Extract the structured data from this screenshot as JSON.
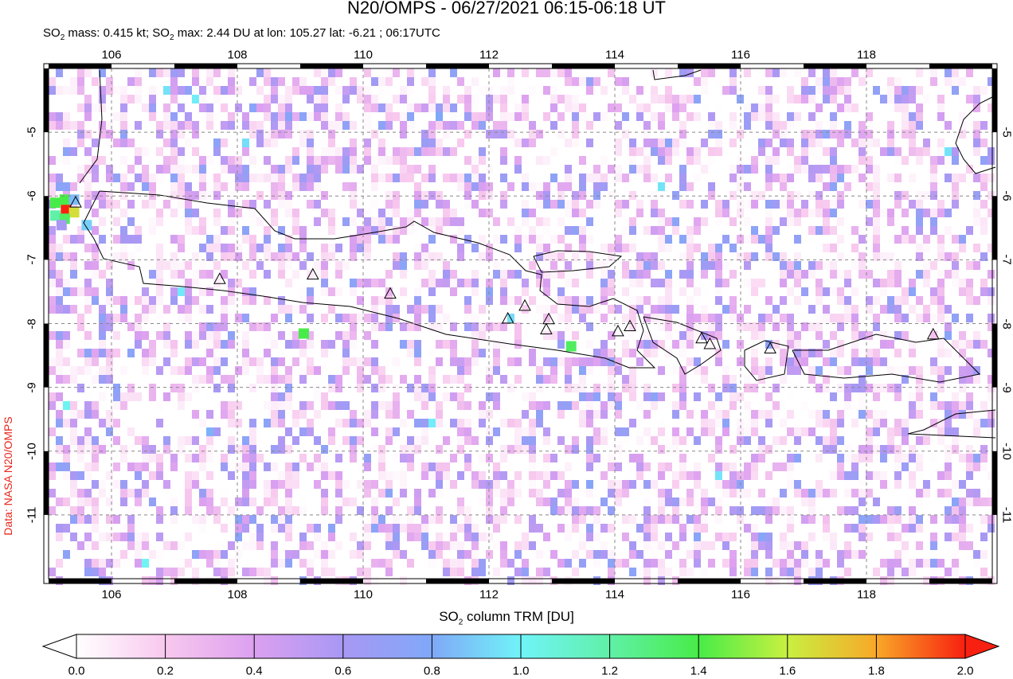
{
  "title": "N20/OMPS - 06/27/2021 06:15-06:18 UT",
  "subtitle": {
    "p1": "SO",
    "s1": "2",
    "p2": " mass: 0.415 kt; SO",
    "s2": "2",
    "p3": " max: 2.44 DU at lon: 105.27 lat: -6.21 ; 06:17UTC"
  },
  "credit": "Data: NASA N20/OMPS",
  "map": {
    "lon_range": [
      105,
      120
    ],
    "lat_range": [
      -12,
      -4
    ],
    "lon_ticks": [
      "106",
      "108",
      "110",
      "112",
      "114",
      "116",
      "118"
    ],
    "lat_ticks": [
      "-5",
      "-6",
      "-7",
      "-8",
      "-9",
      "-10",
      "-11"
    ],
    "grid": true,
    "volcanoes": [
      [
        105.43,
        -6.11
      ],
      [
        107.72,
        -7.31
      ],
      [
        109.2,
        -7.24
      ],
      [
        110.43,
        -7.54
      ],
      [
        112.3,
        -7.93
      ],
      [
        112.57,
        -7.73
      ],
      [
        112.95,
        -7.94
      ],
      [
        112.91,
        -8.1
      ],
      [
        114.05,
        -8.13
      ],
      [
        114.24,
        -8.05
      ],
      [
        115.38,
        -8.24
      ],
      [
        115.51,
        -8.33
      ],
      [
        116.47,
        -8.4
      ],
      [
        119.06,
        -8.18
      ]
    ],
    "high_pixels": [
      [
        105.27,
        -6.21,
        2.0
      ],
      [
        105.4,
        -6.25,
        1.65
      ],
      [
        105.1,
        -6.1,
        1.4
      ],
      [
        105.25,
        -6.05,
        1.4
      ],
      [
        105.1,
        -6.3,
        1.2
      ],
      [
        105.25,
        -6.35,
        1.35
      ],
      [
        105.4,
        -6.05,
        0.85
      ],
      [
        105.6,
        -6.45,
        0.9
      ],
      [
        109.05,
        -8.15,
        1.4
      ],
      [
        113.3,
        -8.35,
        1.35
      ],
      [
        105.2,
        -6.45,
        0.6
      ]
    ]
  },
  "colorbar": {
    "label_pre": "SO",
    "label_sub": "2",
    "label_post": " column TRM [DU]",
    "ticks": [
      "0.0",
      "0.2",
      "0.4",
      "0.6",
      "0.8",
      "1.0",
      "1.2",
      "1.4",
      "1.6",
      "1.8",
      "2.0"
    ],
    "range": [
      0,
      2
    ],
    "colors": [
      "#ffffff",
      "#f8c8ee",
      "#dca0f0",
      "#a898f4",
      "#80a8f8",
      "#70f4f8",
      "#60f0a8",
      "#48ec48",
      "#c8f040",
      "#f8a828",
      "#f82010"
    ]
  }
}
